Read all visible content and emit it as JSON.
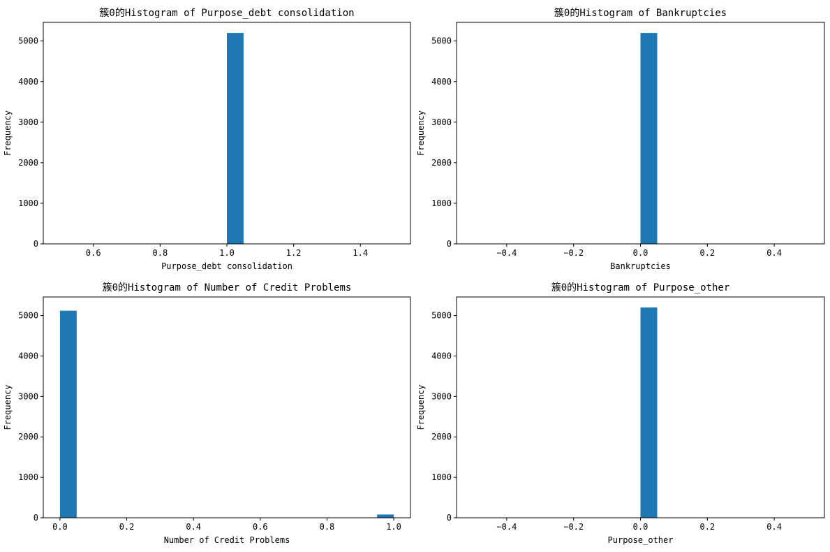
{
  "figure": {
    "bar_color": "#1f77b4"
  },
  "chart_data": [
    {
      "type": "bar",
      "title": "簇0的Histogram of Purpose_debt consolidation",
      "xlabel": "Purpose_debt consolidation",
      "ylabel": "Frequency",
      "xlim": [
        0.45,
        1.55
      ],
      "ylim": [
        0,
        5460
      ],
      "xticks": [
        0.6,
        0.8,
        1.0,
        1.2,
        1.4
      ],
      "xtick_labels": [
        "0.6",
        "0.8",
        "1.0",
        "1.2",
        "1.4"
      ],
      "yticks": [
        0,
        1000,
        2000,
        3000,
        4000,
        5000
      ],
      "ytick_labels": [
        "0",
        "1000",
        "2000",
        "3000",
        "4000",
        "5000"
      ],
      "bins": [
        {
          "start": 1.0,
          "end": 1.05,
          "value": 5200
        }
      ]
    },
    {
      "type": "bar",
      "title": "簇0的Histogram of Bankruptcies",
      "xlabel": "Bankruptcies",
      "ylabel": "Frequency",
      "xlim": [
        -0.55,
        0.55
      ],
      "ylim": [
        0,
        5460
      ],
      "xticks": [
        -0.4,
        -0.2,
        0.0,
        0.2,
        0.4
      ],
      "xtick_labels": [
        "−0.4",
        "−0.2",
        "0.0",
        "0.2",
        "0.4"
      ],
      "yticks": [
        0,
        1000,
        2000,
        3000,
        4000,
        5000
      ],
      "ytick_labels": [
        "0",
        "1000",
        "2000",
        "3000",
        "4000",
        "5000"
      ],
      "bins": [
        {
          "start": 0.0,
          "end": 0.05,
          "value": 5200
        }
      ]
    },
    {
      "type": "bar",
      "title": "簇0的Histogram of Number of Credit Problems",
      "xlabel": "Number of Credit Problems",
      "ylabel": "Frequency",
      "xlim": [
        -0.05,
        1.05
      ],
      "ylim": [
        0,
        5460
      ],
      "xticks": [
        0.0,
        0.2,
        0.4,
        0.6,
        0.8,
        1.0
      ],
      "xtick_labels": [
        "0.0",
        "0.2",
        "0.4",
        "0.6",
        "0.8",
        "1.0"
      ],
      "yticks": [
        0,
        1000,
        2000,
        3000,
        4000,
        5000
      ],
      "ytick_labels": [
        "0",
        "1000",
        "2000",
        "3000",
        "4000",
        "5000"
      ],
      "bins": [
        {
          "start": 0.0,
          "end": 0.05,
          "value": 5120
        },
        {
          "start": 0.95,
          "end": 1.0,
          "value": 80
        }
      ]
    },
    {
      "type": "bar",
      "title": "簇0的Histogram of Purpose_other",
      "xlabel": "Purpose_other",
      "ylabel": "Frequency",
      "xlim": [
        -0.55,
        0.55
      ],
      "ylim": [
        0,
        5460
      ],
      "xticks": [
        -0.4,
        -0.2,
        0.0,
        0.2,
        0.4
      ],
      "xtick_labels": [
        "−0.4",
        "−0.2",
        "0.0",
        "0.2",
        "0.4"
      ],
      "yticks": [
        0,
        1000,
        2000,
        3000,
        4000,
        5000
      ],
      "ytick_labels": [
        "0",
        "1000",
        "2000",
        "3000",
        "4000",
        "5000"
      ],
      "bins": [
        {
          "start": 0.0,
          "end": 0.05,
          "value": 5200
        }
      ]
    }
  ]
}
